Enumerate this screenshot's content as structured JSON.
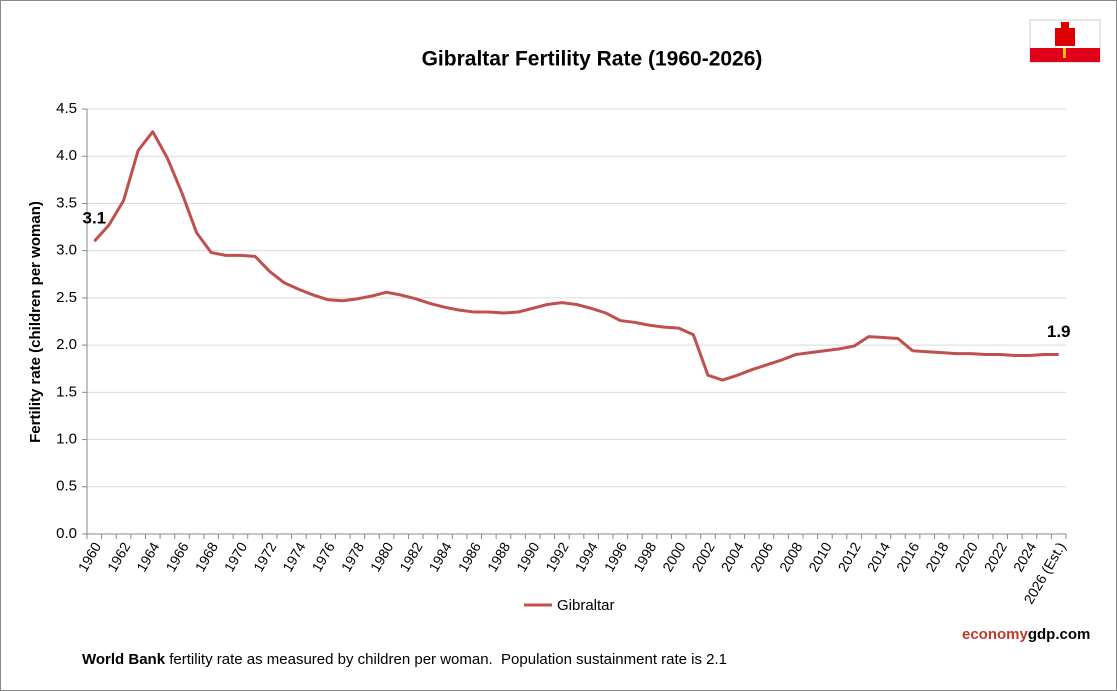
{
  "chart_data": {
    "type": "line",
    "title": "Gibraltar Fertility Rate (1960-2026)",
    "y_label": "Fertility rate (children per woman)",
    "categories": [
      "1960",
      null,
      "1962",
      null,
      "1964",
      null,
      "1966",
      null,
      "1968",
      null,
      "1970",
      null,
      "1972",
      null,
      "1974",
      null,
      "1976",
      null,
      "1978",
      null,
      "1980",
      null,
      "1982",
      null,
      "1984",
      null,
      "1986",
      null,
      "1988",
      null,
      "1990",
      null,
      "1992",
      null,
      "1994",
      null,
      "1996",
      null,
      "1998",
      null,
      "2000",
      null,
      "2002",
      null,
      "2004",
      null,
      "2006",
      null,
      "2008",
      null,
      "2010",
      null,
      "2012",
      null,
      "2014",
      null,
      "2016",
      null,
      "2018",
      null,
      "2020",
      null,
      "2022",
      null,
      "2024",
      null,
      "2026 (Est.)"
    ],
    "series": [
      {
        "name": "Gibraltar",
        "color": "#c0504d",
        "values": [
          3.1,
          3.27,
          3.53,
          4.06,
          4.26,
          3.98,
          3.61,
          3.19,
          2.98,
          2.95,
          2.95,
          2.94,
          2.78,
          2.66,
          2.59,
          2.53,
          2.48,
          2.47,
          2.49,
          2.52,
          2.56,
          2.53,
          2.49,
          2.44,
          2.4,
          2.37,
          2.35,
          2.35,
          2.34,
          2.35,
          2.39,
          2.43,
          2.45,
          2.43,
          2.39,
          2.34,
          2.26,
          2.24,
          2.21,
          2.19,
          2.18,
          2.11,
          1.68,
          1.63,
          1.68,
          1.74,
          1.79,
          1.84,
          1.9,
          1.92,
          1.94,
          1.96,
          1.99,
          2.09,
          2.08,
          2.07,
          1.94,
          1.93,
          1.92,
          1.91,
          1.91,
          1.9,
          1.9,
          1.89,
          1.89,
          1.9,
          1.9
        ]
      }
    ],
    "labeled_points": [
      0,
      66
    ],
    "ylim": [
      0,
      4.5
    ],
    "yticks": [
      {
        "value": 0,
        "label": "0.0"
      },
      0.5,
      {
        "value": 1,
        "label": "1.0"
      },
      1.5,
      {
        "value": 2,
        "label": "2.0"
      },
      2.5,
      {
        "value": 3,
        "label": "3.0"
      },
      3.5,
      {
        "value": 4,
        "label": "4.0"
      },
      4.5
    ],
    "grid": true,
    "legend": "bottom",
    "brand": {
      "first": "economy",
      "second": "gdp",
      "third": ".com"
    },
    "note": {
      "bold": "World Bank",
      "text": " fertility rate as measured by children per woman.  Population sustainment rate is 2.1"
    }
  }
}
